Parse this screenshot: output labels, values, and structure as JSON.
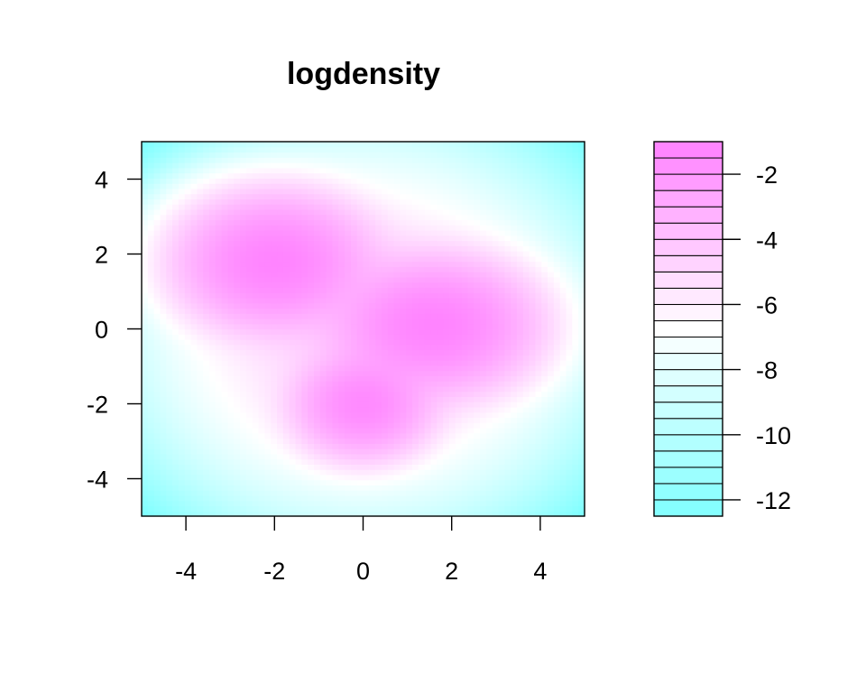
{
  "chart_data": {
    "type": "heatmap",
    "title": "logdensity",
    "xlabel": "",
    "ylabel": "",
    "xlim": [
      -5,
      5
    ],
    "ylim": [
      -5,
      5
    ],
    "x_ticks": [
      -4,
      -2,
      0,
      2,
      4
    ],
    "y_ticks": [
      -4,
      -2,
      0,
      2,
      4
    ],
    "surface": "log-density of a three-component Gaussian mixture",
    "components": [
      {
        "mean_x": -2.0,
        "mean_y": 1.8,
        "sd_x": 0.9,
        "sd_y": 0.75,
        "peak": -1.2
      },
      {
        "mean_x": 1.6,
        "mean_y": 0.1,
        "sd_x": 0.95,
        "sd_y": 0.75,
        "peak": -1.2
      },
      {
        "mean_x": 0.0,
        "mean_y": -2.0,
        "sd_x": 0.65,
        "sd_y": 0.6,
        "peak": -1.5
      }
    ],
    "colorbar": {
      "zlim": [
        -12.5,
        -1
      ],
      "levels": [
        -12.5,
        -12,
        -11.5,
        -11,
        -10.5,
        -10,
        -9.5,
        -9,
        -8.5,
        -8,
        -7.5,
        -7,
        -6.5,
        -6,
        -5.5,
        -5,
        -4.5,
        -4,
        -3.5,
        -3,
        -2.5,
        -2,
        -1.5,
        -1
      ],
      "tick_values": [
        -2,
        -4,
        -6,
        -8,
        -10,
        -12
      ],
      "low_color": "#80ffff",
      "mid_color": "#ffffff",
      "high_color": "#ff80ff"
    },
    "grid": false,
    "legend": "right"
  }
}
